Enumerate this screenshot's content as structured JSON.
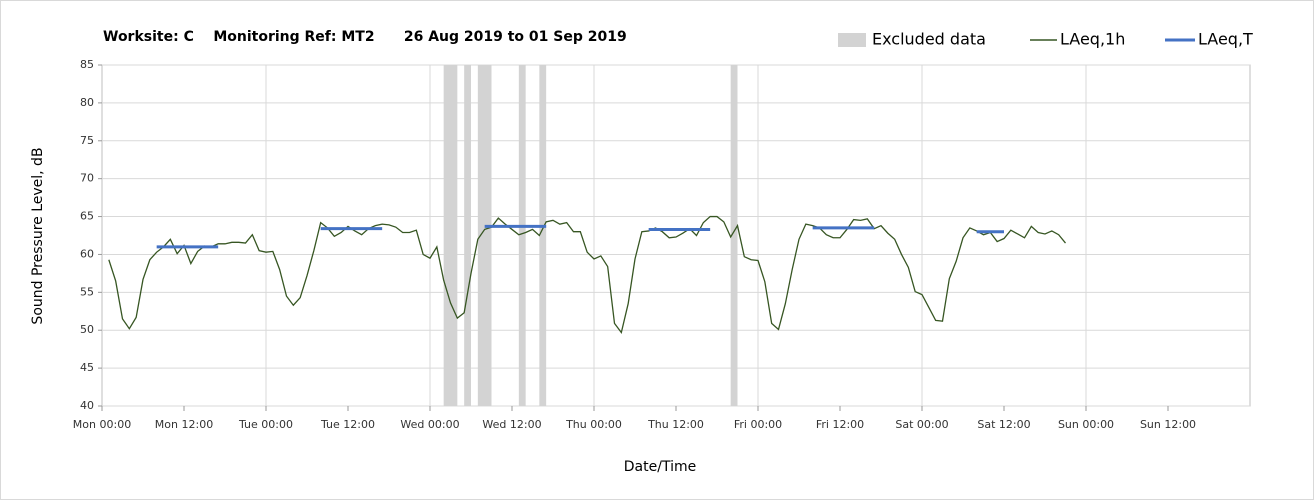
{
  "chart_data": {
    "type": "line",
    "title": "Worksite: C    Monitoring Ref: MT2      26 Aug 2019 to 01 Sep 2019",
    "xlabel": "Date/Time",
    "ylabel": "Sound Pressure Level, dB",
    "xlim": [
      0,
      168
    ],
    "ylim": [
      40,
      85
    ],
    "yticks": [
      40,
      45,
      50,
      55,
      60,
      65,
      70,
      75,
      80,
      85
    ],
    "xticks": [
      {
        "value": 0,
        "label": "Mon 00:00"
      },
      {
        "value": 12,
        "label": "Mon 12:00"
      },
      {
        "value": 24,
        "label": "Tue 00:00"
      },
      {
        "value": 36,
        "label": "Tue 12:00"
      },
      {
        "value": 48,
        "label": "Wed 00:00"
      },
      {
        "value": 60,
        "label": "Wed 12:00"
      },
      {
        "value": 72,
        "label": "Thu 00:00"
      },
      {
        "value": 84,
        "label": "Thu 12:00"
      },
      {
        "value": 96,
        "label": "Fri 00:00"
      },
      {
        "value": 108,
        "label": "Fri 12:00"
      },
      {
        "value": 120,
        "label": "Sat 00:00"
      },
      {
        "value": 132,
        "label": "Sat 12:00"
      },
      {
        "value": 144,
        "label": "Sun 00:00"
      },
      {
        "value": 156,
        "label": "Sun 12:00"
      }
    ],
    "grid": true,
    "excluded": {
      "name": "Excluded data",
      "color": "#d3d3d3",
      "ranges": [
        [
          50,
          52
        ],
        [
          53,
          54
        ],
        [
          55,
          57
        ],
        [
          61,
          62
        ],
        [
          64,
          65
        ],
        [
          92,
          93
        ]
      ]
    },
    "series": [
      {
        "name": "LAeq,1h",
        "color": "#375623",
        "x": [
          1,
          2,
          3,
          4,
          5,
          6,
          7,
          8,
          9,
          10,
          11,
          12,
          13,
          14,
          15,
          16,
          17,
          18,
          19,
          20,
          21,
          22,
          23,
          24,
          25,
          26,
          27,
          28,
          29,
          30,
          31,
          32,
          33,
          34,
          35,
          36,
          37,
          38,
          39,
          40,
          41,
          42,
          43,
          44,
          45,
          46,
          47,
          48,
          49,
          50,
          51,
          52,
          53,
          54,
          55,
          56,
          57,
          58,
          59,
          60,
          61,
          62,
          63,
          64,
          65,
          66,
          67,
          68,
          69,
          70,
          71,
          72,
          73,
          74,
          75,
          76,
          77,
          78,
          79,
          80,
          81,
          82,
          83,
          84,
          85,
          86,
          87,
          88,
          89,
          90,
          91,
          92,
          93,
          94,
          95,
          96,
          97,
          98,
          99,
          100,
          101,
          102,
          103,
          104,
          105,
          106,
          107,
          108,
          109,
          110,
          111,
          112,
          113,
          114,
          115,
          116,
          117,
          118,
          119,
          120,
          121,
          122,
          123,
          124,
          125,
          126,
          127,
          128,
          129,
          130,
          131,
          132,
          133,
          134,
          135,
          136,
          137,
          138,
          139,
          140,
          141
        ],
        "values": [
          59.3,
          56.5,
          51.5,
          50.2,
          51.7,
          56.7,
          59.3,
          60.3,
          61,
          62,
          60.1,
          61.2,
          58.8,
          60.4,
          61.1,
          61,
          61.4,
          61.4,
          61.6,
          61.6,
          61.5,
          62.6,
          60.5,
          60.3,
          60.4,
          58,
          54.5,
          53.3,
          54.3,
          57.2,
          60.5,
          64.2,
          63.5,
          62.4,
          62.9,
          63.7,
          63.1,
          62.6,
          63.4,
          63.8,
          64,
          63.9,
          63.6,
          62.9,
          62.9,
          63.2,
          60,
          59.5,
          61,
          56.6,
          53.6,
          51.6,
          52.3,
          57.5,
          62,
          63.3,
          63.6,
          64.8,
          64,
          63.3,
          62.6,
          62.9,
          63.3,
          62.5,
          64.3,
          64.5,
          64,
          64.2,
          63,
          63,
          60.3,
          59.4,
          59.8,
          58.4,
          50.9,
          49.7,
          53.5,
          59.4,
          63,
          63.1,
          63.5,
          63,
          62.2,
          62.3,
          62.8,
          63.4,
          62.5,
          64.2,
          65,
          65,
          64.3,
          62.3,
          63.8,
          59.7,
          59.3,
          59.2,
          56.4,
          50.9,
          50.1,
          53.5,
          58,
          62,
          64,
          63.8,
          63.5,
          62.6,
          62.2,
          62.2,
          63.3,
          64.6,
          64.5,
          64.7,
          63.4,
          63.8,
          62.8,
          62,
          60,
          58.3,
          55.1,
          54.7,
          53,
          51.3,
          51.2,
          56.8,
          59.1,
          62.2,
          63.5,
          63.1,
          62.6,
          62.9,
          61.7,
          62.1,
          63.2,
          62.7,
          62.2,
          63.7,
          62.9,
          62.7,
          63.1,
          62.6,
          61.5
        ]
      },
      {
        "name": "LAeq,T",
        "color": "#4472c4",
        "x_start": [
          8,
          32,
          56,
          80,
          104,
          128
        ],
        "x_end": [
          17,
          41,
          65,
          89,
          113,
          132
        ],
        "values": [
          61,
          63.4,
          63.7,
          63.3,
          63.5,
          63
        ]
      }
    ]
  }
}
